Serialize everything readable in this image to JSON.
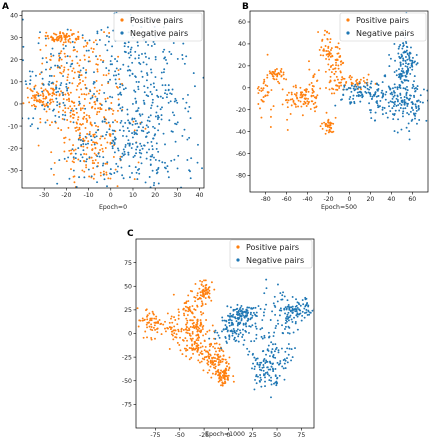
{
  "colors": {
    "positive": "#ff7f0e",
    "negative": "#1f77b4"
  },
  "chart_data": [
    {
      "type": "scatter",
      "panel": "A",
      "xlabel": "Epoch=0",
      "ylabel": "",
      "xlim": [
        -40,
        42
      ],
      "ylim": [
        -38,
        42
      ],
      "xticks": [
        -30,
        -20,
        -10,
        0,
        10,
        20,
        30,
        40
      ],
      "yticks": [
        -30,
        -20,
        -10,
        0,
        10,
        20,
        30,
        40
      ],
      "grid": false,
      "legend_position": "top-right",
      "series": [
        {
          "name": "Positive pairs",
          "color": "#ff7f0e",
          "clusters": [
            [
              -22,
              30,
              3.5,
              1.3
            ],
            [
              -31,
              3,
              4,
              2.5
            ],
            [
              -12,
              -10,
              8,
              10
            ],
            [
              -5,
              -2,
              8,
              10
            ],
            [
              -18,
              0,
              7,
              9
            ],
            [
              -8,
              -25,
              8,
              8
            ],
            [
              -15,
              18,
              8,
              8
            ]
          ],
          "count": 520
        },
        {
          "name": "Negative pairs",
          "color": "#1f77b4",
          "clusters": [
            [
              8,
              -8,
              12,
              12
            ],
            [
              15,
              5,
              12,
              10
            ],
            [
              0,
              -20,
              12,
              10
            ],
            [
              20,
              -20,
              10,
              10
            ],
            [
              10,
              25,
              12,
              8
            ],
            [
              -25,
              10,
              10,
              10
            ]
          ],
          "count": 620
        }
      ]
    },
    {
      "type": "scatter",
      "panel": "B",
      "xlabel": "Epoch=500",
      "ylabel": "",
      "xlim": [
        -95,
        75
      ],
      "ylim": [
        -95,
        70
      ],
      "xticks": [
        -80,
        -60,
        -40,
        -20,
        0,
        20,
        40,
        60
      ],
      "yticks": [
        -80,
        -60,
        -40,
        -20,
        0,
        20,
        40,
        60
      ],
      "grid": false,
      "legend_position": "top-right",
      "series": [
        {
          "name": "Positive pairs",
          "color": "#ff7f0e",
          "clusters": [
            [
              -82,
              -5,
              4,
              10
            ],
            [
              -70,
              12,
              4,
              3
            ],
            [
              -55,
              -15,
              5,
              10
            ],
            [
              -43,
              -8,
              3,
              4
            ],
            [
              -35,
              0,
              3,
              10
            ],
            [
              -22,
              35,
              3,
              7
            ],
            [
              -15,
              20,
              4,
              12
            ],
            [
              -20,
              -35,
              4,
              4
            ],
            [
              -10,
              8,
              6,
              10
            ],
            [
              5,
              5,
              10,
              4
            ]
          ],
          "count": 360
        },
        {
          "name": "Negative pairs",
          "color": "#1f77b4",
          "clusters": [
            [
              50,
              10,
              7,
              20
            ],
            [
              60,
              -15,
              8,
              12
            ],
            [
              35,
              -10,
              15,
              8
            ],
            [
              15,
              -5,
              12,
              5
            ],
            [
              55,
              25,
              5,
              10
            ]
          ],
          "count": 400
        }
      ]
    },
    {
      "type": "scatter",
      "panel": "C",
      "xlabel": "Epoch=1000",
      "ylabel": "",
      "xlim": [
        -95,
        88
      ],
      "ylim": [
        -100,
        100
      ],
      "xticks": [
        -75,
        -50,
        -25,
        0,
        25,
        50,
        75
      ],
      "yticks": [
        -75,
        -50,
        -25,
        0,
        25,
        50,
        75
      ],
      "grid": false,
      "legend_position": "top-right",
      "series": [
        {
          "name": "Positive pairs",
          "color": "#ff7f0e",
          "clusters": [
            [
              -80,
              10,
              6,
              8
            ],
            [
              -55,
              5,
              9,
              8
            ],
            [
              -40,
              25,
              7,
              8
            ],
            [
              -25,
              45,
              4,
              6
            ],
            [
              -35,
              -15,
              8,
              8
            ],
            [
              -20,
              -20,
              8,
              8
            ],
            [
              -10,
              -35,
              6,
              8
            ],
            [
              -5,
              -45,
              4,
              5
            ],
            [
              -30,
              2,
              5,
              6
            ]
          ],
          "count": 520
        },
        {
          "name": "Negative pairs",
          "color": "#1f77b4",
          "clusters": [
            [
              50,
              0,
              10,
              25
            ],
            [
              40,
              -35,
              10,
              12
            ],
            [
              70,
              25,
              10,
              6
            ],
            [
              5,
              5,
              10,
              8
            ],
            [
              15,
              20,
              8,
              5
            ]
          ],
          "count": 480
        }
      ]
    }
  ],
  "panels": [
    {
      "label": "A",
      "xlabel": "Epoch=0",
      "legend": [
        "Positive pairs",
        "Negative pairs"
      ]
    },
    {
      "label": "B",
      "xlabel": "Epoch=500",
      "legend": [
        "Positive pairs",
        "Negative pairs"
      ]
    },
    {
      "label": "C",
      "xlabel": "Epoch=1000",
      "legend": [
        "Positive pairs",
        "Negative pairs"
      ]
    }
  ]
}
